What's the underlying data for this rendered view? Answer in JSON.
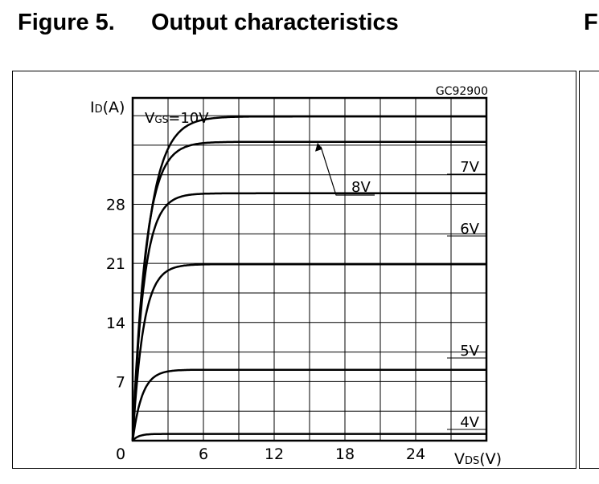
{
  "figure": {
    "number": "Figure 5.",
    "title": "Output characteristics",
    "next_figure_fragment": "F"
  },
  "chart_data": {
    "type": "line",
    "figure_code": "GC92900",
    "ylabel": {
      "main": "I",
      "sub": "D",
      "unit": "(A)"
    },
    "xlabel": {
      "main": "V",
      "sub": "DS",
      "unit": "(V)"
    },
    "xlim": [
      0,
      30
    ],
    "ylim": [
      0,
      40.6
    ],
    "x_ticks": [
      0,
      6,
      12,
      18,
      24
    ],
    "x_tick_labels": [
      "0",
      "6",
      "12",
      "18",
      "24"
    ],
    "y_ticks": [
      7,
      14,
      21,
      28
    ],
    "y_tick_labels": [
      "7",
      "14",
      "21",
      "28"
    ],
    "grid": true,
    "series": [
      {
        "name": "VGS=10V",
        "label": {
          "main": "V",
          "sub": "GS",
          "rest": "=10V"
        },
        "isat": 38.4,
        "k": 1.3
      },
      {
        "name": "8V",
        "label": {
          "main": "8V"
        },
        "isat": 35.4,
        "k": 1.1
      },
      {
        "name": "7V",
        "label": {
          "main": "7V"
        },
        "isat": 29.3,
        "k": 0.95
      },
      {
        "name": "6V",
        "label": {
          "main": "6V"
        },
        "isat": 20.9,
        "k": 0.9
      },
      {
        "name": "5V",
        "label": {
          "main": "5V"
        },
        "isat": 8.4,
        "k": 0.8
      },
      {
        "name": "4V",
        "label": {
          "main": "4V"
        },
        "isat": 0.8,
        "k": 0.5
      }
    ],
    "legend": "inline labels"
  }
}
